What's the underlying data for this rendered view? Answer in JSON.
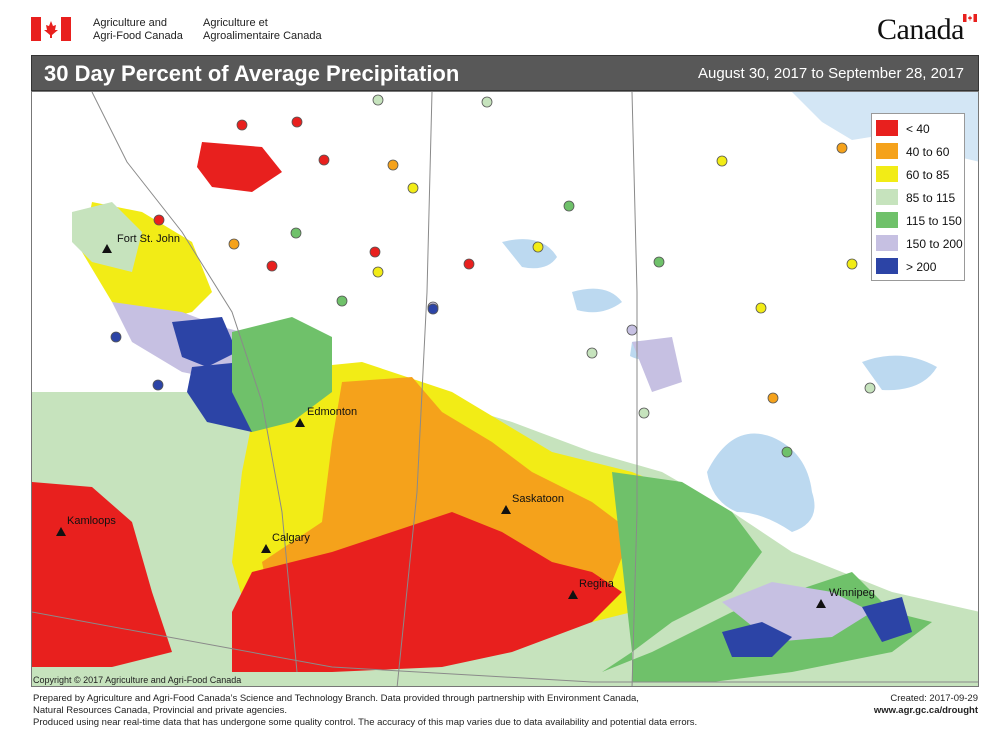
{
  "header": {
    "agency_en_line1": "Agriculture and",
    "agency_en_line2": "Agri-Food Canada",
    "agency_fr_line1": "Agriculture et",
    "agency_fr_line2": "Agroalimentaire Canada",
    "wordmark": "Canada"
  },
  "title": "30 Day Percent of Average Precipitation",
  "date_range": "August 30, 2017 to September 28, 2017",
  "legend": [
    {
      "label": "< 40",
      "color": "#e8201e"
    },
    {
      "label": "40 to 60",
      "color": "#f5a21b"
    },
    {
      "label": "60 to 85",
      "color": "#f2ec16"
    },
    {
      "label": "85 to 115",
      "color": "#c6e3bd"
    },
    {
      "label": "115 to 150",
      "color": "#6fc16a"
    },
    {
      "label": "150 to 200",
      "color": "#c6c0e2"
    },
    {
      "label": "> 200",
      "color": "#2c44a6"
    }
  ],
  "cities": [
    {
      "name": "Fort St. John"
    },
    {
      "name": "Edmonton"
    },
    {
      "name": "Saskatoon"
    },
    {
      "name": "Kamloops"
    },
    {
      "name": "Calgary"
    },
    {
      "name": "Regina"
    },
    {
      "name": "Winnipeg"
    }
  ],
  "colors": {
    "water": "#d3e6f5",
    "lake": "#bcd9f0",
    "border": "#8a8a8a",
    "title_bar": "#585858"
  },
  "copyright": "Copyright © 2017 Agriculture and Agri-Food Canada",
  "footer": {
    "line1": "Prepared by Agriculture and Agri-Food Canada’s Science and Technology Branch. Data provided through partnership with Environment Canada,",
    "line2": "Natural Resources Canada, Provincial and private agencies.",
    "line3": "Produced using near real-time data that has undergone some quality control. The accuracy of this map varies due to data availability and potential data errors.",
    "created": "Created: 2017-09-29",
    "url": "www.agr.gc.ca/drought"
  }
}
